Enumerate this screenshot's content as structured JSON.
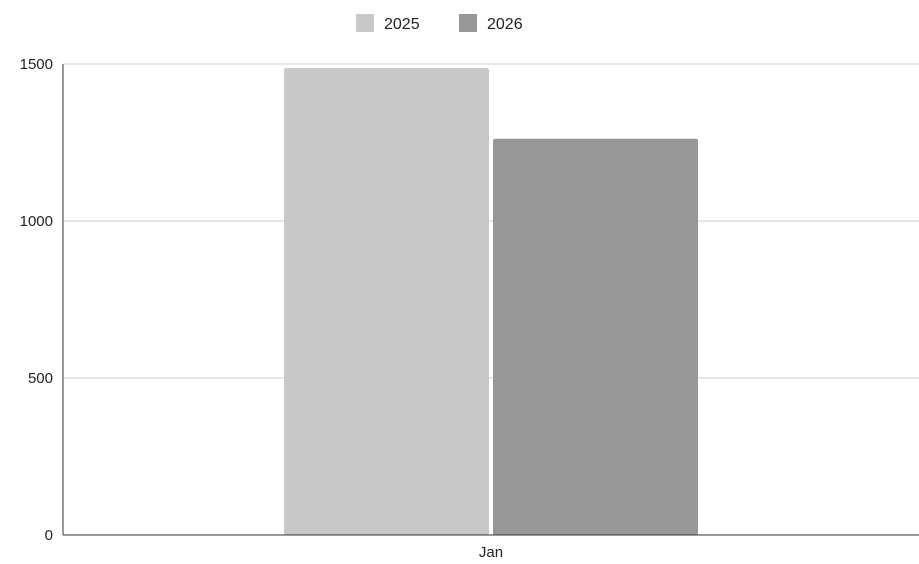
{
  "chart_data": {
    "type": "bar",
    "categories": [
      "Jan"
    ],
    "series": [
      {
        "name": "2025",
        "values": [
          1487
        ],
        "color": "#c8c8c8"
      },
      {
        "name": "2026",
        "values": [
          1262
        ],
        "color": "#979797"
      }
    ],
    "ylim": [
      0,
      1500
    ],
    "yticks": [
      0,
      500,
      1000,
      1500
    ],
    "ytick_labels": [
      "0",
      "500",
      "1000",
      "1500"
    ],
    "grid": true,
    "legend_position": "top-center",
    "title": "",
    "xlabel": "",
    "ylabel": "",
    "colors": {
      "gridline": "#cccccc",
      "axis": "#333333",
      "text": "#222222"
    }
  }
}
